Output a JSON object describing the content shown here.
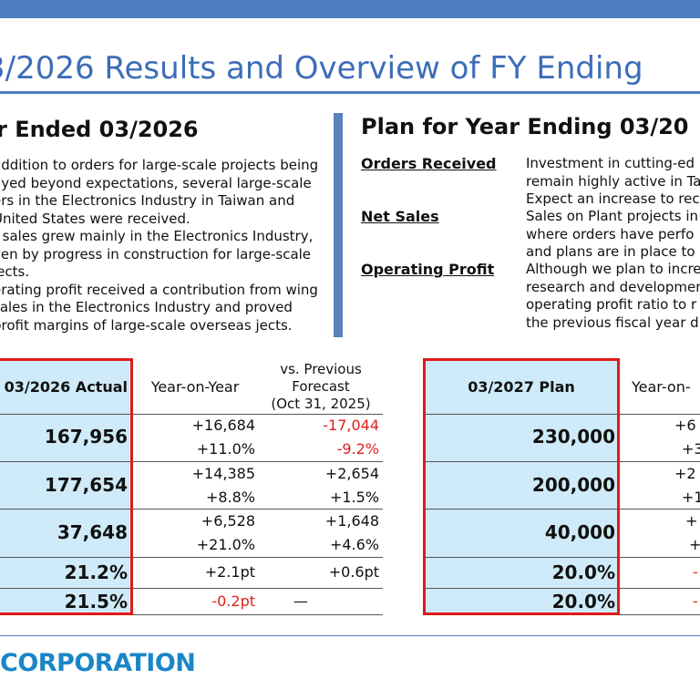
{
  "header": {
    "title": "3/2026 Results and Overview of FY Ending"
  },
  "results": {
    "heading": "r Ended 03/2026",
    "paragraphs": [
      "addition to orders for large-scale projects being ayed beyond expectations, several large-scale ers in the Electronics Industry in Taiwan and United States were received.",
      "t sales grew mainly in the Electronics Industry, ven by progress in construction for large-scale jects.",
      "erating profit received a contribution from wing sales in the Electronics Industry and proved profit margins of large-scale overseas jects."
    ]
  },
  "plan": {
    "heading": "Plan for Year Ending 03/20",
    "items": [
      {
        "label": "Orders Received",
        "lines": [
          "Investment in cutting-ed",
          "remain highly active in Ta",
          "Expect an increase to rec"
        ]
      },
      {
        "label": "Net Sales",
        "lines": [
          "Sales on Plant projects in",
          "where orders have perfo",
          "and plans are in place to"
        ]
      },
      {
        "label": "Operating Profit",
        "lines": [
          "Although we plan to incre",
          "research and developmen",
          "operating profit ratio to r",
          "the previous fiscal year d"
        ]
      }
    ]
  },
  "table_left": {
    "headers": {
      "actual": "03/2026 Actual",
      "yoy": "Year-on-Year",
      "vs_line1": "vs. Previous",
      "vs_line2": "Forecast",
      "vs_line3": "(Oct 31, 2025)"
    },
    "rows": [
      {
        "actual": "167,956",
        "yoy": [
          "+16,684",
          "+11.0%"
        ],
        "vs": [
          "-17,044",
          "-9.2%"
        ]
      },
      {
        "actual": "177,654",
        "yoy": [
          "+14,385",
          "+8.8%"
        ],
        "vs": [
          "+2,654",
          "+1.5%"
        ]
      },
      {
        "actual": "37,648",
        "yoy": [
          "+6,528",
          "+21.0%"
        ],
        "vs": [
          "+1,648",
          "+4.6%"
        ]
      },
      {
        "actual": "21.2%",
        "yoy": [
          "+2.1pt"
        ],
        "vs": [
          "+0.6pt"
        ]
      },
      {
        "actual": "21.5%",
        "yoy": [
          "-0.2pt"
        ],
        "vs": [
          "—"
        ]
      }
    ]
  },
  "table_right": {
    "headers": {
      "plan": "03/2027 Plan",
      "yoy": "Year-on-"
    },
    "rows": [
      {
        "plan": "230,000",
        "yoy": [
          "+6",
          "+3"
        ]
      },
      {
        "plan": "200,000",
        "yoy": [
          "+2",
          "+1"
        ]
      },
      {
        "plan": "40,000",
        "yoy": [
          "+",
          "+"
        ]
      },
      {
        "plan": "20.0%",
        "yoy": [
          "-"
        ]
      },
      {
        "plan": "20.0%",
        "yoy": [
          "-"
        ]
      }
    ]
  },
  "footer": {
    "company": "CORPORATION"
  },
  "colors": {
    "accent_blue": "#4f7cc0",
    "cell_blue": "#cfeaf8",
    "highlight_red": "#e01a1a",
    "negative_red": "#e0201c"
  }
}
